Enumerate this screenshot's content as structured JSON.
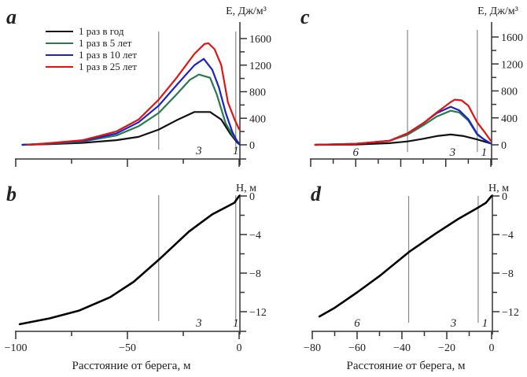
{
  "chart_data": [
    {
      "id": "a",
      "panel_letter": "a",
      "type": "line",
      "ylabel": "E, Дж/м³",
      "xlim": [
        -100,
        0
      ],
      "ylim": [
        -100,
        1750
      ],
      "yticks": [
        0,
        400,
        800,
        1200,
        1600
      ],
      "yminor_step": 200,
      "xticks": [
        -100,
        -75,
        -50,
        -25,
        0
      ],
      "xtick_labels_shown": false,
      "zone_lines": [
        -36,
        -1.5
      ],
      "zone_labels": [
        {
          "text": "3",
          "x": -18
        },
        {
          "text": "1",
          "x": -1.5
        }
      ],
      "legend": {
        "position": "top-left",
        "entries": [
          "1 раз в год",
          "1 раз в 5 лет",
          "1 раз в 10 лет",
          "1 раз в 25 лет"
        ]
      },
      "series": [
        {
          "name": "1 раз в год",
          "color": "#111111",
          "x": [
            -97,
            -85,
            -70,
            -55,
            -45,
            -36,
            -28,
            -20,
            -13,
            -8,
            -4,
            -1,
            0
          ],
          "y": [
            0,
            10,
            30,
            70,
            120,
            230,
            370,
            494,
            494,
            380,
            170,
            40,
            10
          ]
        },
        {
          "name": "1 раз в 5 лет",
          "color": "#2a7a4a",
          "x": [
            -97,
            -85,
            -70,
            -55,
            -45,
            -36,
            -28,
            -22,
            -18,
            -13,
            -10,
            -6,
            -3,
            -1,
            0
          ],
          "y": [
            0,
            15,
            50,
            140,
            280,
            480,
            760,
            980,
            1058,
            1010,
            760,
            320,
            150,
            60,
            20
          ]
        },
        {
          "name": "1 раз в 10 лет",
          "color": "#1a22c8",
          "x": [
            -97,
            -85,
            -70,
            -55,
            -45,
            -36,
            -28,
            -20,
            -15.8,
            -12,
            -9,
            -6,
            -3,
            -1,
            0
          ],
          "y": [
            0,
            20,
            60,
            170,
            340,
            590,
            900,
            1200,
            1294,
            1130,
            860,
            480,
            190,
            60,
            20
          ]
        },
        {
          "name": "1 раз в 25 лет",
          "color": "#e01414",
          "x": [
            -95,
            -85,
            -70,
            -55,
            -45,
            -36,
            -28,
            -20,
            -15.5,
            -13.7,
            -11,
            -8,
            -5,
            -2,
            0
          ],
          "y": [
            0,
            25,
            70,
            200,
            380,
            680,
            1010,
            1370,
            1520,
            1529,
            1440,
            1200,
            640,
            380,
            235
          ]
        }
      ]
    },
    {
      "id": "b",
      "panel_letter": "b",
      "type": "line",
      "ylabel": "H, м",
      "xlabel": "Расстояние от берега, м",
      "xlim": [
        -100,
        0
      ],
      "ylim": [
        -14,
        0
      ],
      "yticks": [
        0,
        -4,
        -8,
        -12
      ],
      "ytick_labels": [
        "0",
        "−4",
        "−8",
        "−12"
      ],
      "yminor_step": 2,
      "xticks": [
        -100,
        -75,
        -50,
        -25,
        0
      ],
      "xtick_labels": [
        "−100",
        "",
        "−50",
        "",
        "0"
      ],
      "zone_lines": [
        -36,
        -1.5
      ],
      "zone_labels": [
        {
          "text": "3",
          "x": -18
        },
        {
          "text": "1",
          "x": -1.5
        }
      ],
      "series": [
        {
          "name": "profile",
          "color": "#000000",
          "x": [
            -98.2,
            -85,
            -71.8,
            -57.7,
            -47.2,
            -35.9,
            -22.5,
            -12,
            -2.1,
            0
          ],
          "y": [
            -13.3,
            -12.7,
            -11.9,
            -10.5,
            -8.9,
            -6.6,
            -3.7,
            -1.9,
            -0.7,
            0
          ]
        }
      ]
    },
    {
      "id": "c",
      "panel_letter": "c",
      "type": "line",
      "ylabel": "E, Дж/м³",
      "xlim": [
        -80,
        0
      ],
      "ylim": [
        -100,
        1750
      ],
      "yticks": [
        0,
        400,
        800,
        1200,
        1600
      ],
      "yminor_step": 200,
      "xticks": [
        -80,
        -70,
        -60,
        -50,
        -40,
        -30,
        -20,
        -10,
        0
      ],
      "xtick_labels_shown": false,
      "zone_lines": [
        -37,
        -6
      ],
      "zone_labels": [
        {
          "text": "6",
          "x": -60
        },
        {
          "text": "3",
          "x": -17
        },
        {
          "text": "1",
          "x": -3
        }
      ],
      "series": [
        {
          "name": "1 раз в год",
          "color": "#111111",
          "x": [
            -78,
            -60,
            -45,
            -37,
            -30,
            -24,
            -17.8,
            -12,
            -6,
            0
          ],
          "y": [
            0,
            5,
            25,
            50,
            90,
            130,
            153,
            130,
            80,
            20
          ]
        },
        {
          "name": "1 раз в 5 лет",
          "color": "#2a7a4a",
          "x": [
            -78,
            -60,
            -45,
            -37,
            -30,
            -24,
            -17.8,
            -14,
            -10,
            -6,
            -3,
            0
          ],
          "y": [
            0,
            15,
            60,
            150,
            290,
            420,
            506,
            480,
            360,
            150,
            80,
            20
          ]
        },
        {
          "name": "1 раз в 10 лет",
          "color": "#1a22c8",
          "x": [
            -78,
            -60,
            -45,
            -37,
            -30,
            -24,
            -17.8,
            -14,
            -10,
            -6,
            -3,
            0
          ],
          "y": [
            0,
            15,
            60,
            170,
            320,
            470,
            565,
            510,
            380,
            160,
            80,
            20
          ]
        },
        {
          "name": "1 раз в 25 лет",
          "color": "#e01414",
          "x": [
            -78,
            -60,
            -45,
            -37,
            -30,
            -24,
            -18,
            -16,
            -13,
            -10,
            -6,
            -3,
            0
          ],
          "y": [
            0,
            15,
            60,
            170,
            320,
            480,
            630,
            670,
            660,
            580,
            330,
            200,
            60
          ]
        }
      ]
    },
    {
      "id": "d",
      "panel_letter": "d",
      "type": "line",
      "ylabel": "H, м",
      "xlabel": "Расстояние от берега, м",
      "xlim": [
        -80,
        0
      ],
      "ylim": [
        -14,
        0
      ],
      "yticks": [
        0,
        -4,
        -8,
        -12
      ],
      "ytick_labels": [
        "0",
        "−4",
        "−8",
        "−12"
      ],
      "yminor_step": 2,
      "xticks": [
        -80,
        -70,
        -60,
        -50,
        -40,
        -30,
        -20,
        -10,
        0
      ],
      "xtick_labels": [
        "−80",
        "",
        "−60",
        "",
        "−40",
        "",
        "−20",
        "",
        "0"
      ],
      "zone_lines": [
        -37,
        -6
      ],
      "zone_labels": [
        {
          "text": "6",
          "x": -60
        },
        {
          "text": "3",
          "x": -17
        },
        {
          "text": "1",
          "x": -3
        }
      ],
      "series": [
        {
          "name": "profile",
          "color": "#000000",
          "x": [
            -76.8,
            -70,
            -60,
            -50,
            -36.8,
            -25,
            -15,
            -6,
            -2.5,
            0
          ],
          "y": [
            -12.5,
            -11.6,
            -10.0,
            -8.3,
            -5.8,
            -3.9,
            -2.4,
            -1.2,
            -0.7,
            0
          ]
        }
      ]
    }
  ]
}
